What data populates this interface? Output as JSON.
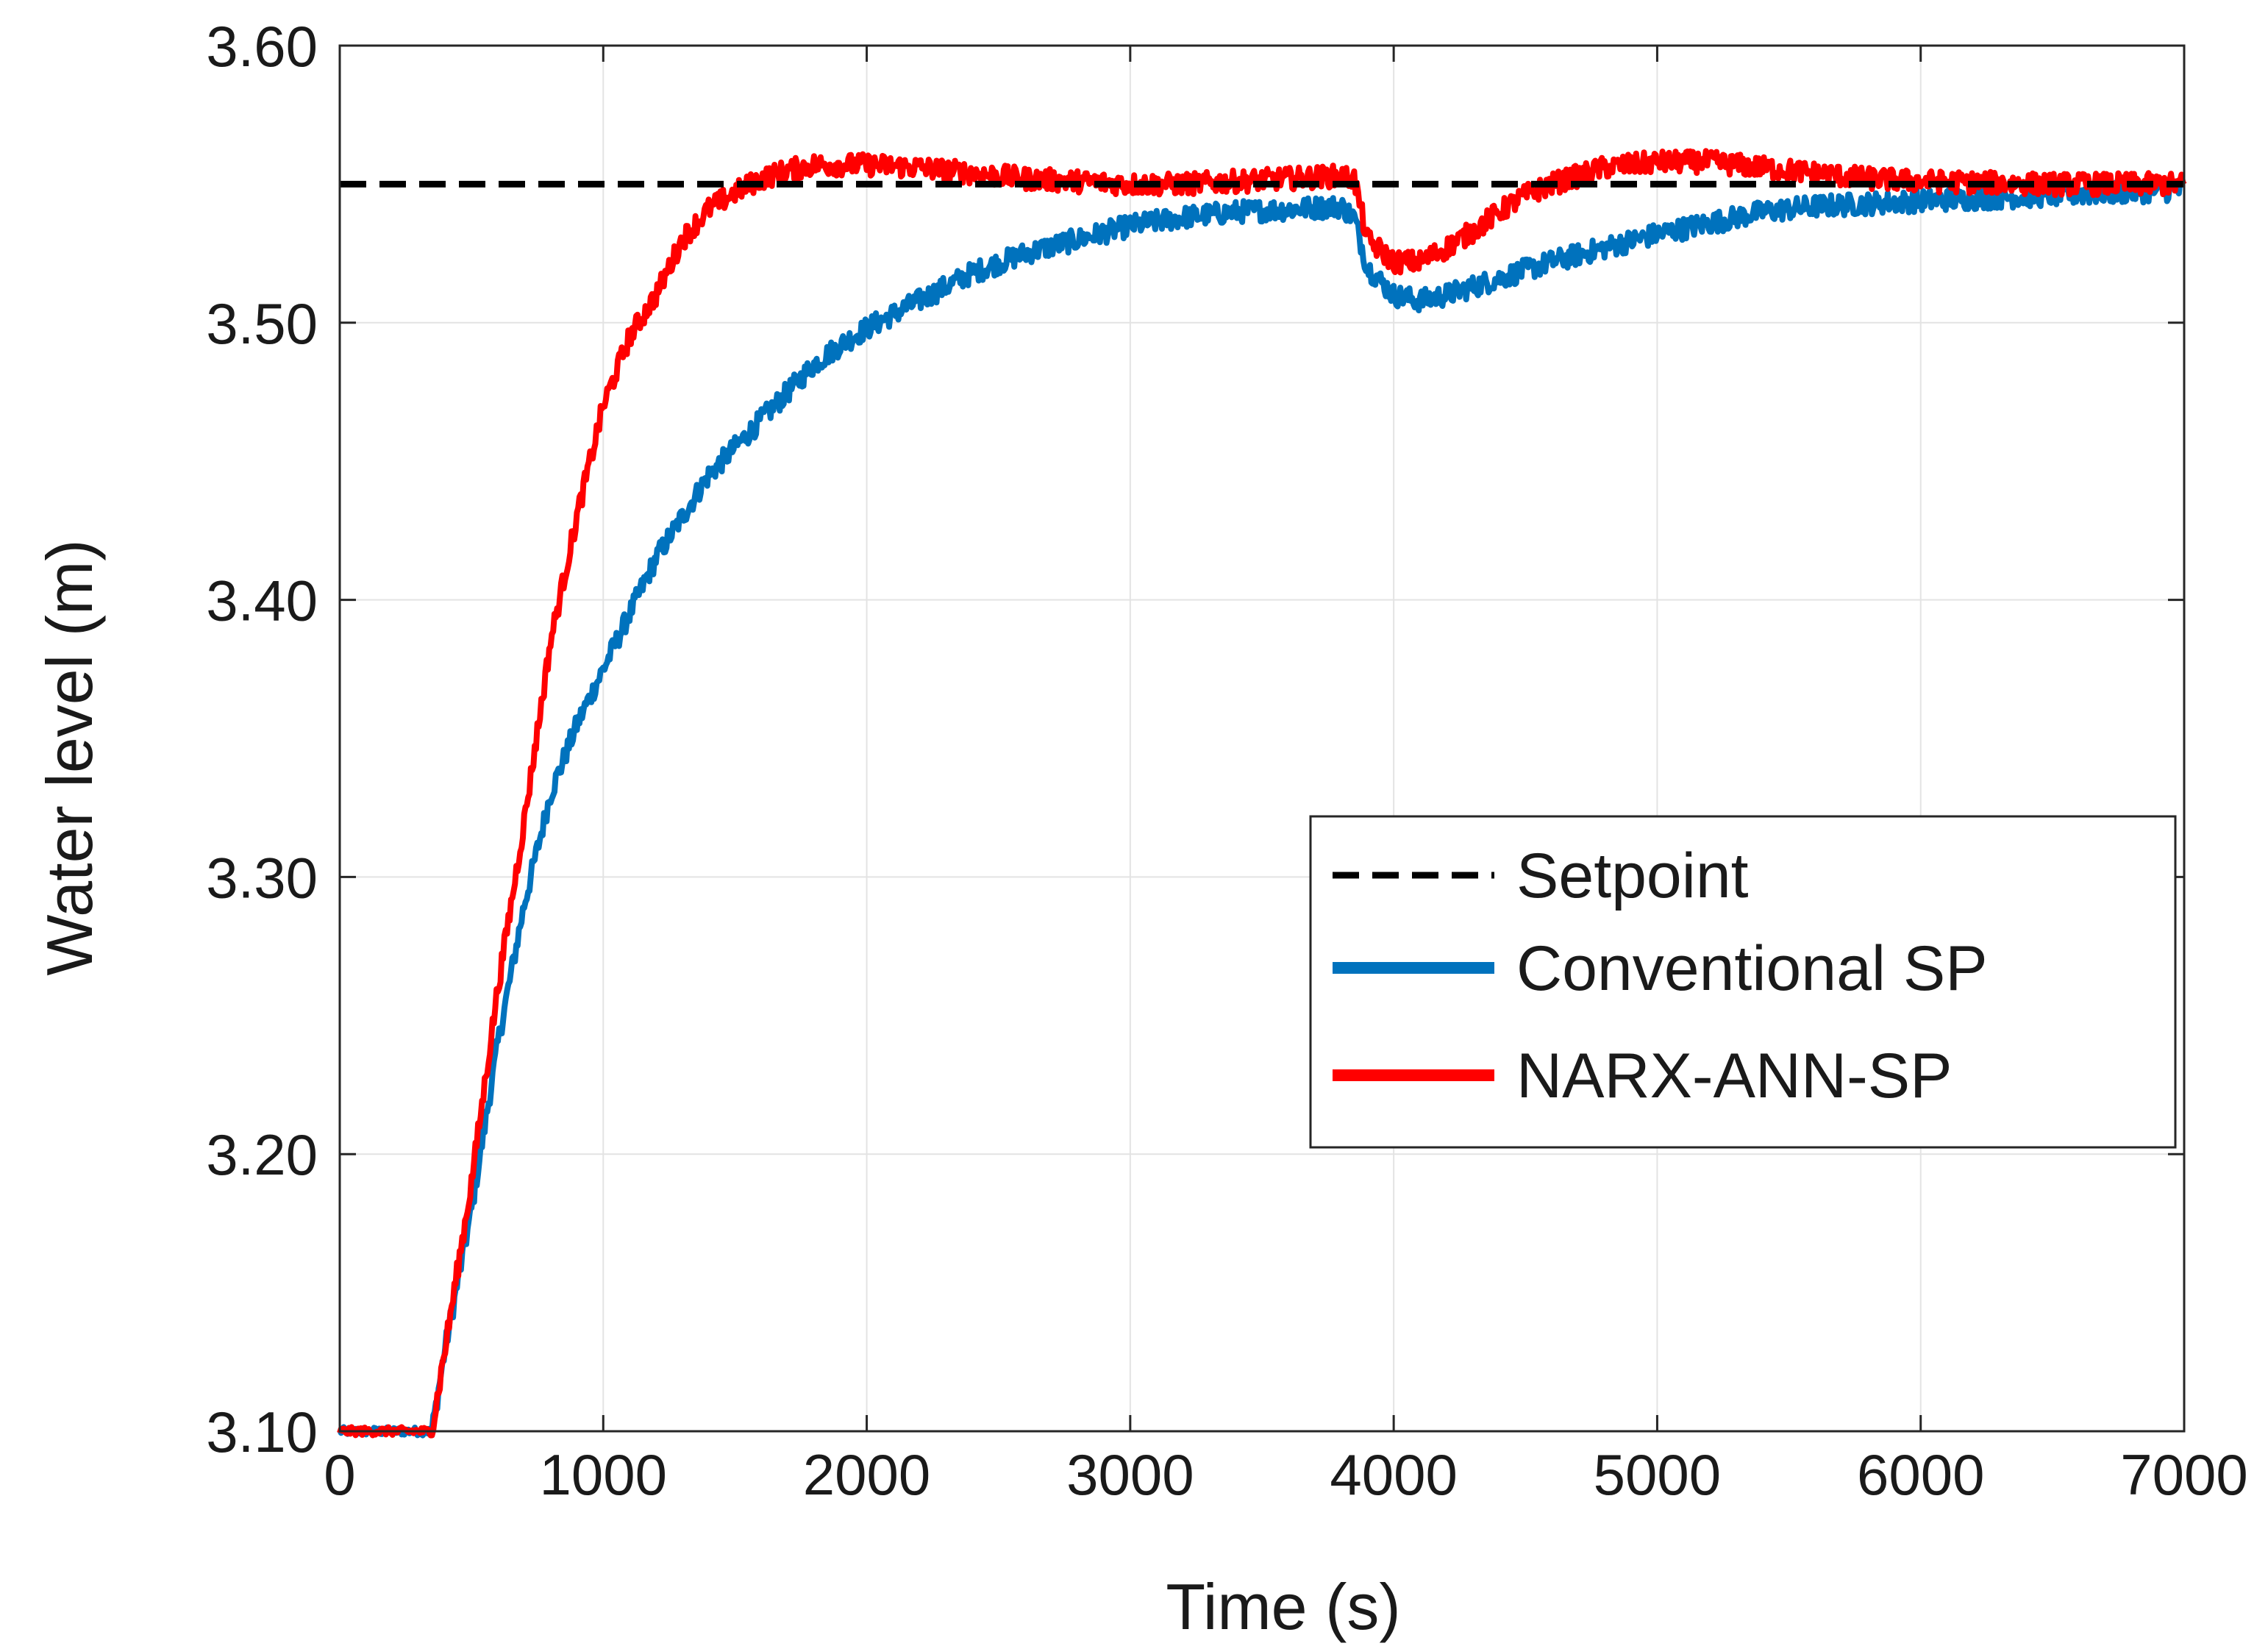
{
  "chart_data": {
    "type": "line",
    "title": "",
    "xlabel": "Time (s)",
    "ylabel": "Water level (m)",
    "xlim": [
      0,
      7000
    ],
    "ylim": [
      3.1,
      3.6
    ],
    "grid": true,
    "legend_position": "center-right",
    "x_ticks": [
      "0",
      "1000",
      "2000",
      "3000",
      "4000",
      "5000",
      "6000",
      "7000"
    ],
    "y_ticks": [
      "3.10",
      "3.20",
      "3.30",
      "3.40",
      "3.50",
      "3.60"
    ],
    "series": [
      {
        "name": "Setpoint",
        "color": "#000000",
        "style": "dashed",
        "x": [
          0,
          7000
        ],
        "y": [
          3.55,
          3.55
        ]
      },
      {
        "name": "Conventional SP",
        "color": "#0072BD",
        "style": "solid",
        "noise": 0.004,
        "x": [
          0,
          350,
          400,
          500,
          600,
          700,
          800,
          900,
          1000,
          1100,
          1200,
          1300,
          1400,
          1500,
          1600,
          1700,
          1800,
          1900,
          2000,
          2200,
          2400,
          2600,
          2800,
          3000,
          3200,
          3400,
          3600,
          3800,
          3850,
          3900,
          4000,
          4100,
          4200,
          4300,
          4400,
          4600,
          4800,
          5000,
          5200,
          5400,
          5600,
          5800,
          6000,
          6500,
          7000
        ],
        "y": [
          3.1,
          3.1,
          3.13,
          3.18,
          3.24,
          3.29,
          3.33,
          3.355,
          3.375,
          3.395,
          3.415,
          3.43,
          3.445,
          3.455,
          3.465,
          3.475,
          3.485,
          3.492,
          3.498,
          3.508,
          3.518,
          3.525,
          3.53,
          3.535,
          3.538,
          3.54,
          3.541,
          3.542,
          3.538,
          3.52,
          3.51,
          3.508,
          3.51,
          3.513,
          3.516,
          3.522,
          3.527,
          3.532,
          3.536,
          3.54,
          3.542,
          3.543,
          3.544,
          3.546,
          3.548
        ]
      },
      {
        "name": "NARX-ANN-SP",
        "color": "#FF0000",
        "style": "solid",
        "noise": 0.004,
        "x": [
          0,
          350,
          400,
          500,
          600,
          700,
          800,
          900,
          1000,
          1100,
          1200,
          1300,
          1400,
          1500,
          1600,
          1700,
          1800,
          2000,
          2200,
          2400,
          2600,
          2800,
          3000,
          3200,
          3400,
          3600,
          3800,
          3850,
          3900,
          4000,
          4100,
          4200,
          4300,
          4400,
          4500,
          4600,
          4700,
          4800,
          5000,
          5200,
          5400,
          5600,
          5800,
          6000,
          6500,
          7000
        ],
        "y": [
          3.1,
          3.1,
          3.13,
          3.19,
          3.26,
          3.32,
          3.385,
          3.43,
          3.47,
          3.495,
          3.51,
          3.53,
          3.541,
          3.547,
          3.552,
          3.555,
          3.557,
          3.557,
          3.556,
          3.554,
          3.552,
          3.551,
          3.55,
          3.55,
          3.551,
          3.552,
          3.553,
          3.552,
          3.53,
          3.522,
          3.522,
          3.527,
          3.533,
          3.54,
          3.546,
          3.55,
          3.553,
          3.556,
          3.558,
          3.558,
          3.556,
          3.554,
          3.552,
          3.551,
          3.55,
          3.55
        ]
      }
    ]
  }
}
